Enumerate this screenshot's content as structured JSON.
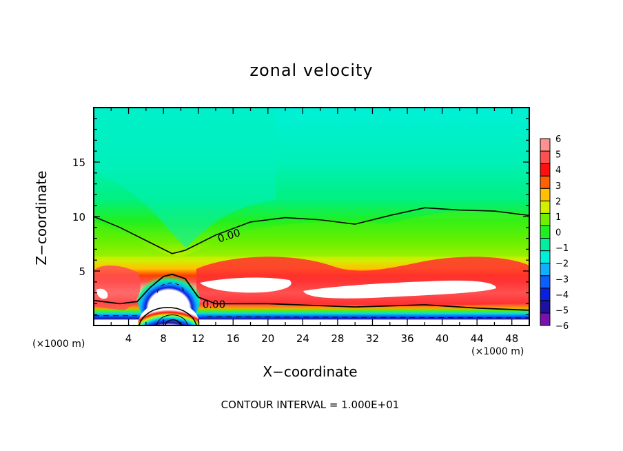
{
  "chart_data": {
    "type": "heatmap",
    "subtype": "filled-contour",
    "title": "zonal velocity",
    "xlabel": "X−coordinate",
    "ylabel": "Z−coordinate",
    "x_unit_left": "(×1000 m)",
    "x_unit_right": "(×1000 m)",
    "xlim": [
      0,
      50
    ],
    "ylim": [
      0,
      20
    ],
    "x_ticks": [
      4,
      8,
      12,
      16,
      20,
      24,
      28,
      32,
      36,
      40,
      44,
      48
    ],
    "x_tick_labels": [
      "4",
      "8",
      "12",
      "16",
      "20",
      "24",
      "28",
      "32",
      "36",
      "40",
      "44",
      "48"
    ],
    "x_minor_step": 2,
    "y_ticks": [
      5,
      10,
      15
    ],
    "y_tick_labels": [
      "5",
      "10",
      "15"
    ],
    "y_minor_step": 1,
    "contour_interval_text": "CONTOUR INTERVAL = 1.000E+01",
    "contour_labels": [
      {
        "text": "0.00",
        "x": 15.5,
        "z": 8.3
      },
      {
        "text": "0.00",
        "x": 13.8,
        "z": 2.0
      }
    ],
    "zero_contour_upper": [
      [
        0,
        10.0
      ],
      [
        3,
        9.0
      ],
      [
        6,
        7.8
      ],
      [
        9,
        6.6
      ],
      [
        10.5,
        6.9
      ],
      [
        14,
        8.3
      ],
      [
        18,
        9.5
      ],
      [
        22,
        9.9
      ],
      [
        26,
        9.7
      ],
      [
        30,
        9.3
      ],
      [
        34,
        10.1
      ],
      [
        38,
        10.8
      ],
      [
        42,
        10.6
      ],
      [
        46,
        10.5
      ],
      [
        50,
        10.1
      ]
    ],
    "zero_contour_lower": [
      [
        0,
        2.3
      ],
      [
        3,
        2.0
      ],
      [
        5,
        2.2
      ],
      [
        6.5,
        3.5
      ],
      [
        8,
        4.5
      ],
      [
        9,
        4.7
      ],
      [
        10.5,
        4.3
      ],
      [
        12,
        2.6
      ],
      [
        14,
        2.0
      ],
      [
        20,
        2.0
      ],
      [
        30,
        1.7
      ],
      [
        38,
        1.9
      ],
      [
        44,
        1.6
      ],
      [
        50,
        1.4
      ]
    ],
    "colorbar": {
      "levels": [
        -6,
        -5,
        -4,
        -3,
        -2,
        -1,
        0,
        1,
        2,
        3,
        4,
        5,
        6
      ],
      "tick_labels": [
        "6",
        "5",
        "4",
        "3",
        "2",
        "1",
        "0",
        "−1",
        "−2",
        "−3",
        "−4",
        "−5",
        "−6"
      ],
      "colors": [
        "#7a10b0",
        "#2010a0",
        "#0a20e0",
        "#0a60ff",
        "#10b0ff",
        "#00f0e0",
        "#00f0a0",
        "#20f020",
        "#70f000",
        "#d0f000",
        "#ffc000",
        "#ff6000",
        "#ff1010",
        "#ff5050",
        "#ff9090"
      ],
      "overflow_color": "#ffffff"
    },
    "field_description": "Positive jet (4-6+, exceeds 6 near z=2.5-4) along lower levels x>12 and x<6; negative core (<-6) above ground near x=8-11; near-zero green mid-levels; cyan (-2) aloft near x=8 at top."
  }
}
